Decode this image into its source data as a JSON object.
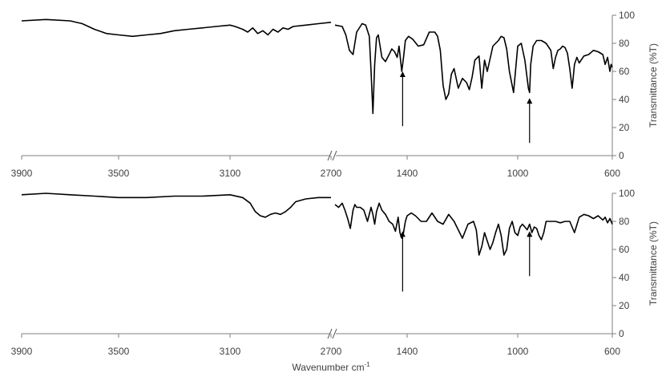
{
  "chart_data": [
    {
      "type": "line",
      "x_ticks": [
        3900,
        3500,
        3100,
        2700,
        1400,
        1000,
        600
      ],
      "x_tick_labels": [
        "3900",
        "3500",
        "3100",
        "2700",
        "1400",
        "1000",
        "600"
      ],
      "y_ticks": [
        0,
        20,
        40,
        60,
        80,
        100
      ],
      "y_tick_labels": [
        "0",
        "20",
        "40",
        "60",
        "80",
        "100"
      ],
      "ylabel": "Transmittance (%T)",
      "ylim": [
        0,
        100
      ],
      "x_axis_break": [
        2700,
        1800
      ],
      "arrows_at_wavenumber": [
        1425,
        950
      ],
      "series": [
        {
          "x": [
            3900,
            3800,
            3700,
            3650,
            3600,
            3550,
            3500,
            3450,
            3400,
            3350,
            3300,
            3250,
            3200,
            3150,
            3100,
            3080,
            3050,
            3030,
            3010,
            2990,
            2970,
            2950,
            2930,
            2910,
            2890,
            2870,
            2850,
            2800,
            2750,
            2700
          ],
          "y": [
            96,
            97,
            96,
            94,
            90,
            87,
            86,
            85,
            86,
            87,
            89,
            90,
            91,
            92,
            93,
            92,
            90,
            88,
            91,
            87,
            89,
            86,
            90,
            88,
            91,
            90,
            92,
            93,
            94,
            95
          ]
        },
        {
          "x": [
            1800,
            1760,
            1740,
            1720,
            1700,
            1680,
            1650,
            1630,
            1610,
            1600,
            1590,
            1580,
            1570,
            1560,
            1540,
            1520,
            1500,
            1485,
            1470,
            1455,
            1445,
            1430,
            1420,
            1410,
            1395,
            1380,
            1360,
            1340,
            1320,
            1300,
            1290,
            1280,
            1270,
            1260,
            1250,
            1240,
            1230,
            1215,
            1200,
            1185,
            1175,
            1165,
            1155,
            1140,
            1130,
            1120,
            1110,
            1090,
            1070,
            1060,
            1050,
            1040,
            1030,
            1015,
            1000,
            985,
            970,
            955,
            950,
            945,
            935,
            920,
            900,
            880,
            860,
            850,
            840,
            830,
            820,
            810,
            800,
            790,
            780,
            770,
            760,
            750,
            740,
            720,
            700,
            680,
            660,
            640,
            630,
            620,
            610,
            605,
            600
          ],
          "y": [
            93,
            92,
            86,
            75,
            72,
            88,
            94,
            93,
            85,
            60,
            30,
            65,
            84,
            86,
            70,
            67,
            72,
            76,
            74,
            70,
            78,
            60,
            70,
            82,
            85,
            83,
            78,
            79,
            88,
            88,
            85,
            75,
            50,
            40,
            44,
            58,
            62,
            48,
            55,
            52,
            47,
            56,
            68,
            71,
            48,
            68,
            60,
            78,
            82,
            85,
            84,
            76,
            60,
            45,
            78,
            80,
            68,
            48,
            45,
            65,
            78,
            82,
            82,
            80,
            75,
            62,
            70,
            75,
            76,
            78,
            77,
            73,
            62,
            48,
            65,
            70,
            66,
            71,
            72,
            75,
            74,
            72,
            65,
            70,
            60,
            65,
            63
          ]
        }
      ]
    },
    {
      "type": "line",
      "x_ticks": [
        3900,
        3500,
        3100,
        2700,
        1400,
        1000,
        600
      ],
      "x_tick_labels": [
        "3900",
        "3500",
        "3100",
        "2700",
        "1400",
        "1000",
        "600"
      ],
      "y_ticks": [
        0,
        20,
        40,
        60,
        80,
        100
      ],
      "y_tick_labels": [
        "0",
        "20",
        "40",
        "60",
        "80",
        "100"
      ],
      "ylabel": "Transmittance (%T)",
      "xlabel_main": "Wavenumber cm",
      "xlabel_sup": "-1",
      "ylim": [
        0,
        100
      ],
      "x_axis_break": [
        2700,
        1800
      ],
      "arrows_at_wavenumber": [
        1425,
        950
      ],
      "series": [
        {
          "x": [
            3900,
            3800,
            3700,
            3600,
            3500,
            3400,
            3300,
            3200,
            3100,
            3050,
            3020,
            3000,
            2980,
            2960,
            2940,
            2920,
            2900,
            2880,
            2860,
            2840,
            2800,
            2750,
            2700
          ],
          "y": [
            99,
            100,
            99,
            98,
            97,
            97,
            98,
            98,
            99,
            97,
            93,
            87,
            84,
            83,
            85,
            86,
            85,
            87,
            90,
            94,
            96,
            97,
            97
          ],
          "name": ""
        },
        {
          "x": [
            1800,
            1780,
            1760,
            1745,
            1730,
            1715,
            1700,
            1690,
            1680,
            1660,
            1640,
            1620,
            1600,
            1590,
            1580,
            1570,
            1555,
            1540,
            1520,
            1500,
            1480,
            1465,
            1450,
            1440,
            1430,
            1420,
            1410,
            1400,
            1385,
            1370,
            1350,
            1330,
            1310,
            1290,
            1270,
            1250,
            1230,
            1210,
            1200,
            1180,
            1160,
            1150,
            1140,
            1130,
            1120,
            1110,
            1100,
            1090,
            1080,
            1070,
            1060,
            1050,
            1040,
            1030,
            1020,
            1010,
            1000,
            990,
            980,
            970,
            960,
            950,
            940,
            930,
            920,
            910,
            900,
            890,
            880,
            860,
            840,
            820,
            800,
            780,
            760,
            740,
            720,
            700,
            680,
            660,
            640,
            630,
            620,
            610,
            600
          ],
          "y": [
            92,
            90,
            93,
            88,
            82,
            75,
            88,
            92,
            90,
            90,
            88,
            80,
            90,
            85,
            78,
            87,
            93,
            88,
            85,
            80,
            78,
            73,
            83,
            72,
            68,
            72,
            80,
            84,
            86,
            84,
            80,
            80,
            86,
            80,
            78,
            85,
            80,
            72,
            68,
            78,
            80,
            74,
            56,
            62,
            72,
            66,
            60,
            65,
            72,
            78,
            70,
            56,
            60,
            75,
            80,
            72,
            70,
            76,
            78,
            76,
            74,
            78,
            72,
            76,
            75,
            70,
            67,
            72,
            80,
            80,
            80,
            79,
            80,
            80,
            72,
            83,
            85,
            84,
            82,
            84,
            81,
            83,
            79,
            82,
            78
          ],
          "name": ""
        }
      ]
    }
  ]
}
